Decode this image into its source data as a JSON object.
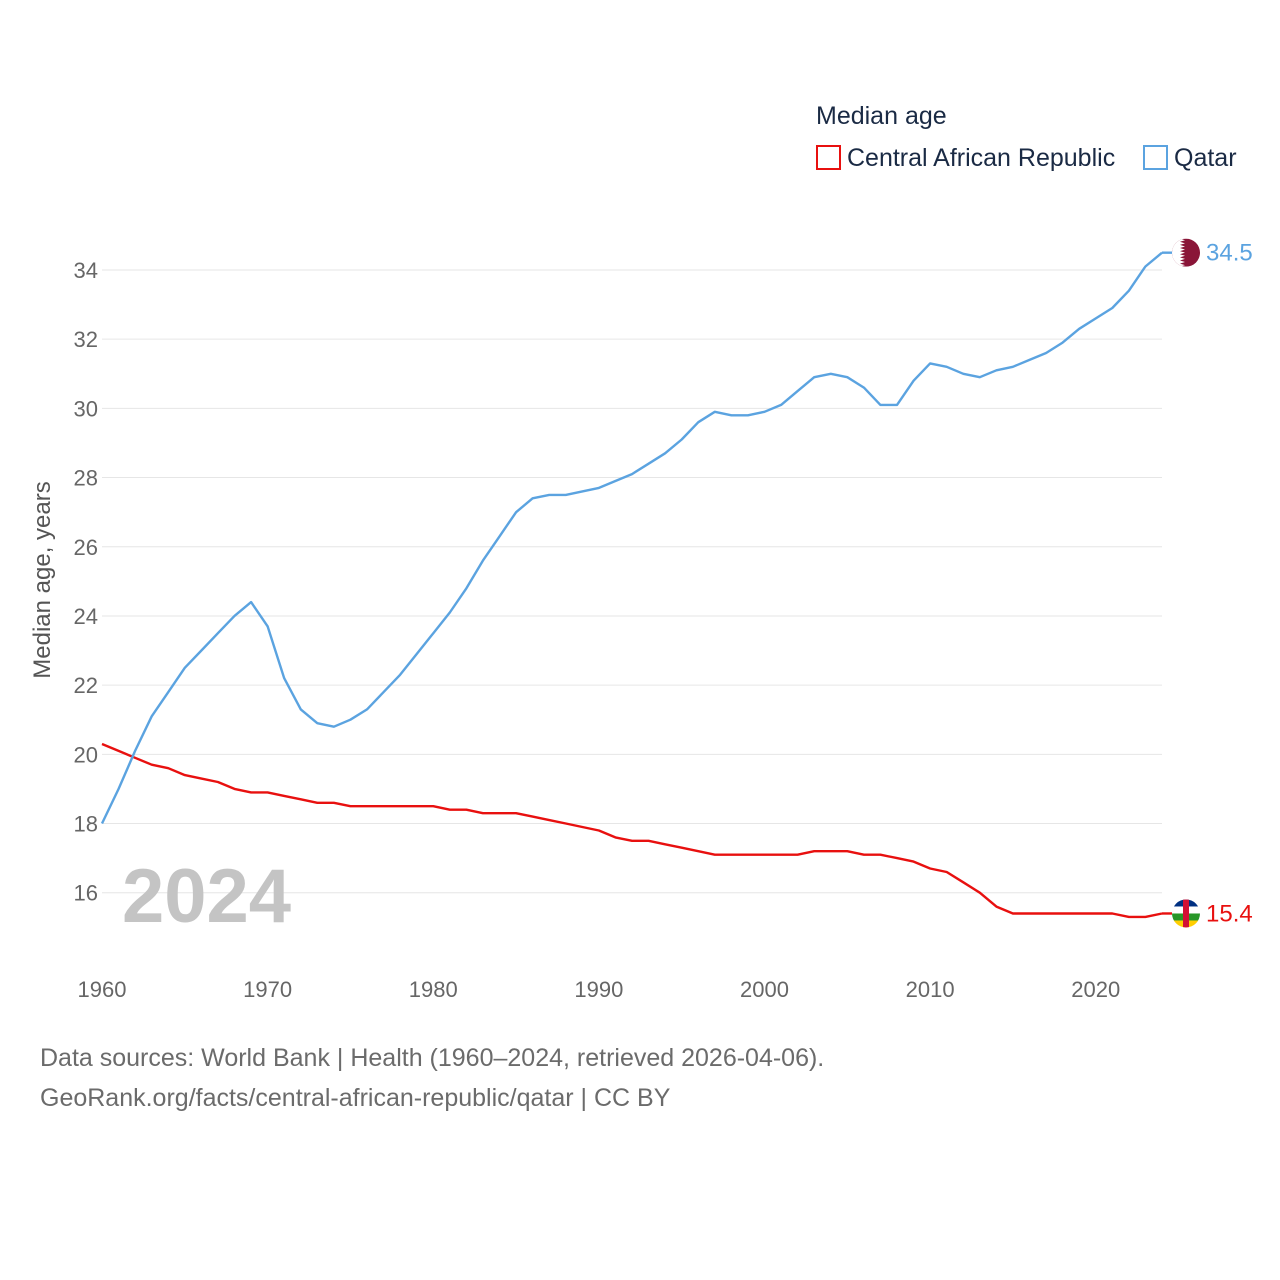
{
  "chart_data": {
    "type": "line",
    "title": "Median age",
    "ylabel": "Median age, years",
    "xlabel": "",
    "xlim": [
      1960,
      2024
    ],
    "ylim": [
      14.2,
      35.3
    ],
    "yticks": [
      16,
      18,
      20,
      22,
      24,
      26,
      28,
      30,
      32,
      34
    ],
    "xticks": [
      1960,
      1970,
      1980,
      1990,
      2000,
      2010,
      2020
    ],
    "highlight_year": "2024",
    "legend_position": "top-right",
    "series": [
      {
        "name": "Central African Republic",
        "color": "#e8100f",
        "end_label": "15.4",
        "flag": "central-african-republic-flag-icon",
        "x": [
          1960,
          1961,
          1962,
          1963,
          1964,
          1965,
          1966,
          1967,
          1968,
          1969,
          1970,
          1971,
          1972,
          1973,
          1974,
          1975,
          1976,
          1977,
          1978,
          1979,
          1980,
          1981,
          1982,
          1983,
          1984,
          1985,
          1986,
          1987,
          1988,
          1989,
          1990,
          1991,
          1992,
          1993,
          1994,
          1995,
          1996,
          1997,
          1998,
          1999,
          2000,
          2001,
          2002,
          2003,
          2004,
          2005,
          2006,
          2007,
          2008,
          2009,
          2010,
          2011,
          2012,
          2013,
          2014,
          2015,
          2016,
          2017,
          2018,
          2019,
          2020,
          2021,
          2022,
          2023,
          2024
        ],
        "values": [
          20.3,
          20.1,
          19.9,
          19.7,
          19.6,
          19.4,
          19.3,
          19.2,
          19.0,
          18.9,
          18.9,
          18.8,
          18.7,
          18.6,
          18.6,
          18.5,
          18.5,
          18.5,
          18.5,
          18.5,
          18.5,
          18.4,
          18.4,
          18.3,
          18.3,
          18.3,
          18.2,
          18.1,
          18.0,
          17.9,
          17.8,
          17.6,
          17.5,
          17.5,
          17.4,
          17.3,
          17.2,
          17.1,
          17.1,
          17.1,
          17.1,
          17.1,
          17.1,
          17.2,
          17.2,
          17.2,
          17.1,
          17.1,
          17.0,
          16.9,
          16.7,
          16.6,
          16.3,
          16.0,
          15.6,
          15.4,
          15.4,
          15.4,
          15.4,
          15.4,
          15.4,
          15.4,
          15.3,
          15.3,
          15.4
        ]
      },
      {
        "name": "Qatar",
        "color": "#5ba3e0",
        "end_label": "34.5",
        "flag": "qatar-flag-icon",
        "x": [
          1960,
          1961,
          1962,
          1963,
          1964,
          1965,
          1966,
          1967,
          1968,
          1969,
          1970,
          1971,
          1972,
          1973,
          1974,
          1975,
          1976,
          1977,
          1978,
          1979,
          1980,
          1981,
          1982,
          1983,
          1984,
          1985,
          1986,
          1987,
          1988,
          1989,
          1990,
          1991,
          1992,
          1993,
          1994,
          1995,
          1996,
          1997,
          1998,
          1999,
          2000,
          2001,
          2002,
          2003,
          2004,
          2005,
          2006,
          2007,
          2008,
          2009,
          2010,
          2011,
          2012,
          2013,
          2014,
          2015,
          2016,
          2017,
          2018,
          2019,
          2020,
          2021,
          2022,
          2023,
          2024
        ],
        "values": [
          18.0,
          19.0,
          20.1,
          21.1,
          21.8,
          22.5,
          23.0,
          23.5,
          24.0,
          24.4,
          23.7,
          22.2,
          21.3,
          20.9,
          20.8,
          21.0,
          21.3,
          21.8,
          22.3,
          22.9,
          23.5,
          24.1,
          24.8,
          25.6,
          26.3,
          27.0,
          27.4,
          27.5,
          27.5,
          27.6,
          27.7,
          27.9,
          28.1,
          28.4,
          28.7,
          29.1,
          29.6,
          29.9,
          29.8,
          29.8,
          29.9,
          30.1,
          30.5,
          30.9,
          31.0,
          30.9,
          30.6,
          30.1,
          30.1,
          30.8,
          31.3,
          31.2,
          31.0,
          30.9,
          31.1,
          31.2,
          31.4,
          31.6,
          31.9,
          32.3,
          32.6,
          32.9,
          33.4,
          34.1,
          34.5
        ]
      }
    ]
  },
  "footer": {
    "line1": "Data sources: World Bank | Health (1960–2024, retrieved 2026-04-06).",
    "line2": "GeoRank.org/facts/central-african-republic/qatar | CC BY"
  }
}
